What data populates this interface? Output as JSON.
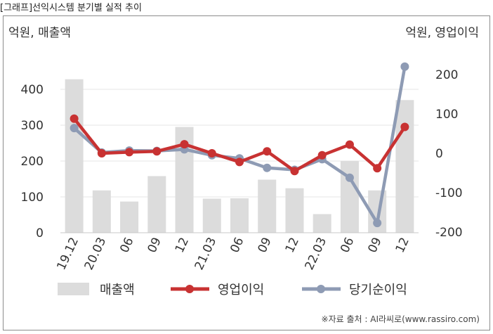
{
  "title": "[그래프]선익시스템 분기별 실적 추이",
  "source": "※자료 출처 : AI라씨로(www.rassiro.com)",
  "colors": {
    "sales_bar": "#dcdcdc",
    "operating": "#c83232",
    "net": "#8e9bb4",
    "grid": "#e6e6e6"
  },
  "chart_data": {
    "type": "bar+line",
    "categories": [
      "19.12",
      "20.03",
      "06",
      "09",
      "12",
      "21.03",
      "06",
      "09",
      "12",
      "22.03",
      "06",
      "09",
      "12"
    ],
    "y_left": {
      "label": "억원, 매출액",
      "ylim": [
        0,
        450
      ],
      "ticks": [
        0,
        100,
        200,
        300,
        400
      ]
    },
    "y_right": {
      "label": "억원, 영업이익",
      "ylim": [
        -200,
        225
      ],
      "ticks": [
        -200,
        -100,
        0,
        100,
        200
      ]
    },
    "series": [
      {
        "name": "매출액",
        "type": "bar",
        "axis": "left",
        "values": [
          428,
          118,
          87,
          158,
          295,
          95,
          96,
          148,
          124,
          52,
          200,
          118,
          370
        ]
      },
      {
        "name": "영업이익",
        "type": "line",
        "axis": "right",
        "values": [
          88,
          0,
          3,
          5,
          23,
          0,
          -22,
          5,
          -45,
          -5,
          22,
          -38,
          67
        ]
      },
      {
        "name": "당기순이익",
        "type": "line",
        "axis": "right",
        "values": [
          64,
          2,
          7,
          6,
          10,
          -5,
          -13,
          -37,
          -42,
          -15,
          -62,
          -177,
          220
        ]
      }
    ],
    "grid": true,
    "legend_position": "bottom"
  }
}
